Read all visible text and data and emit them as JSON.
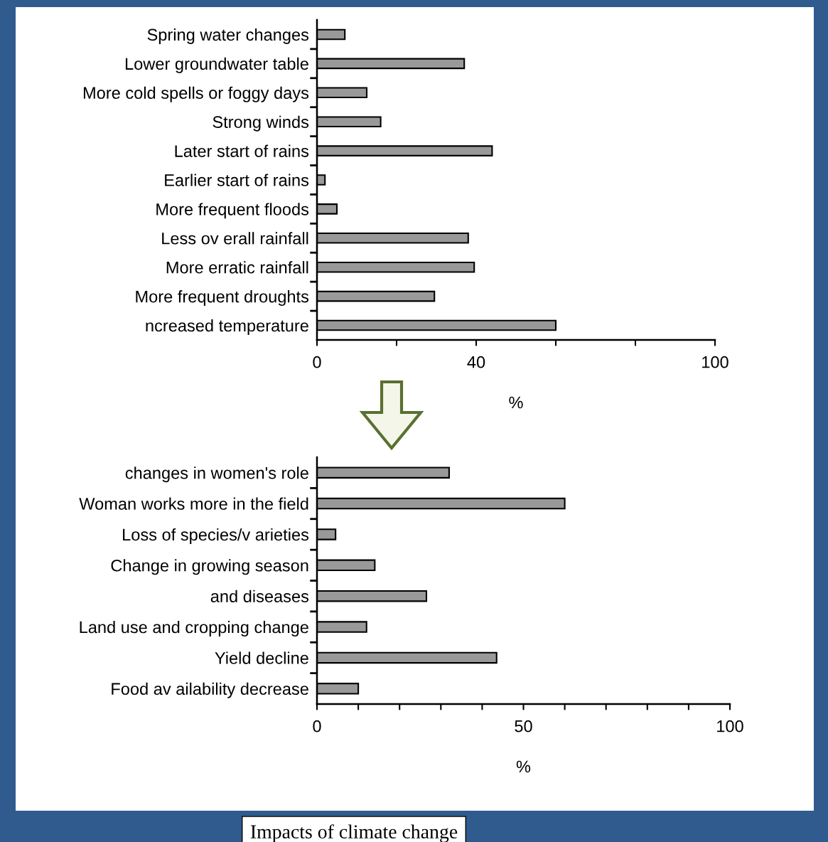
{
  "chart_data": [
    {
      "type": "bar",
      "orientation": "horizontal",
      "xlabel": "%",
      "categories": [
        "Spring water changes",
        "Lower groundwater table",
        "More cold spells or foggy days",
        "Strong winds",
        "Later start of rains",
        "Earlier start of rains",
        "More frequent floods",
        "Less ov erall rainfall",
        "More erratic rainfall",
        "More frequent droughts",
        "ncreased temperature"
      ],
      "values": [
        7,
        37,
        12.5,
        16,
        44,
        2,
        5,
        38,
        39.5,
        29.5,
        60
      ],
      "color": "#999999",
      "xlim": [
        0,
        100
      ],
      "xticks": [
        0,
        {
          "value": 20,
          "label": null
        },
        40,
        {
          "value": 60,
          "label": null
        },
        {
          "value": 80,
          "label": null
        },
        100
      ]
    },
    {
      "type": "bar",
      "orientation": "horizontal",
      "xlabel": "%",
      "categories": [
        "changes in women's role",
        "Woman works more in the field",
        "Loss of species/v arieties",
        "Change in growing season",
        "and diseases",
        "Land use and cropping change",
        "Yield decline",
        "Food av ailability decrease"
      ],
      "values": [
        32,
        60,
        4.5,
        14,
        26.5,
        12,
        43.5,
        10
      ],
      "color": "#999999",
      "xlim": [
        0,
        100
      ],
      "xticks": [
        0,
        {
          "value": 10,
          "label": null
        },
        {
          "value": 20,
          "label": null
        },
        {
          "value": 30,
          "label": null
        },
        {
          "value": 40,
          "label": null
        },
        50,
        {
          "value": 60,
          "label": null
        },
        {
          "value": 70,
          "label": null
        },
        {
          "value": 80,
          "label": null
        },
        {
          "value": 90,
          "label": null
        },
        100
      ],
      "annotations": [
        "Impacts of climate change"
      ]
    }
  ]
}
